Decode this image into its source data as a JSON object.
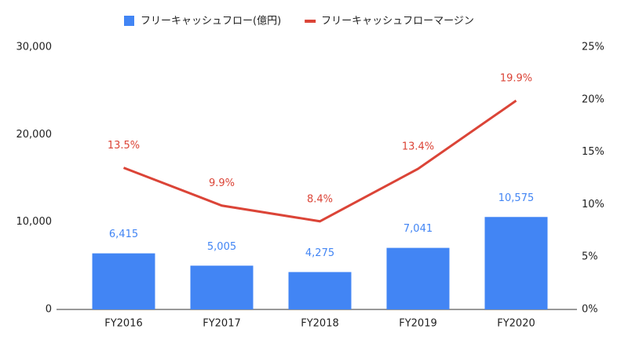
{
  "chart_data": {
    "type": "combo",
    "categories": [
      "FY2016",
      "FY2017",
      "FY2018",
      "FY2019",
      "FY2020"
    ],
    "series": [
      {
        "name": "フリーキャッシュフロー(億円)",
        "type": "bar",
        "color": "#4285f4",
        "values": [
          6415,
          5005,
          4275,
          7041,
          10575
        ],
        "value_labels": [
          "6,415",
          "5,005",
          "4,275",
          "7,041",
          "10,575"
        ]
      },
      {
        "name": "フリーキャッシュフローマージン",
        "type": "line",
        "axis": "y2",
        "color": "#db4437",
        "values": [
          13.5,
          9.9,
          8.4,
          13.4,
          19.9
        ],
        "value_labels": [
          "13.5%",
          "9.9%",
          "8.4%",
          "13.4%",
          "19.9%"
        ]
      }
    ],
    "ylim": [
      0,
      30000
    ],
    "yticks": [
      0,
      {
        "value": 10000,
        "label": "10,000"
      },
      {
        "value": 20000,
        "label": "20,000"
      },
      {
        "value": 30000,
        "label": "30,000"
      }
    ],
    "y2lim": [
      0,
      25
    ],
    "y2ticks": [
      {
        "value": 0,
        "label": "0%"
      },
      {
        "value": 5,
        "label": "5%"
      },
      {
        "value": 10,
        "label": "10%"
      },
      {
        "value": 15,
        "label": "15%"
      },
      {
        "value": 20,
        "label": "20%"
      },
      {
        "value": 25,
        "label": "25%"
      }
    ],
    "grid": false,
    "legend": "top"
  }
}
